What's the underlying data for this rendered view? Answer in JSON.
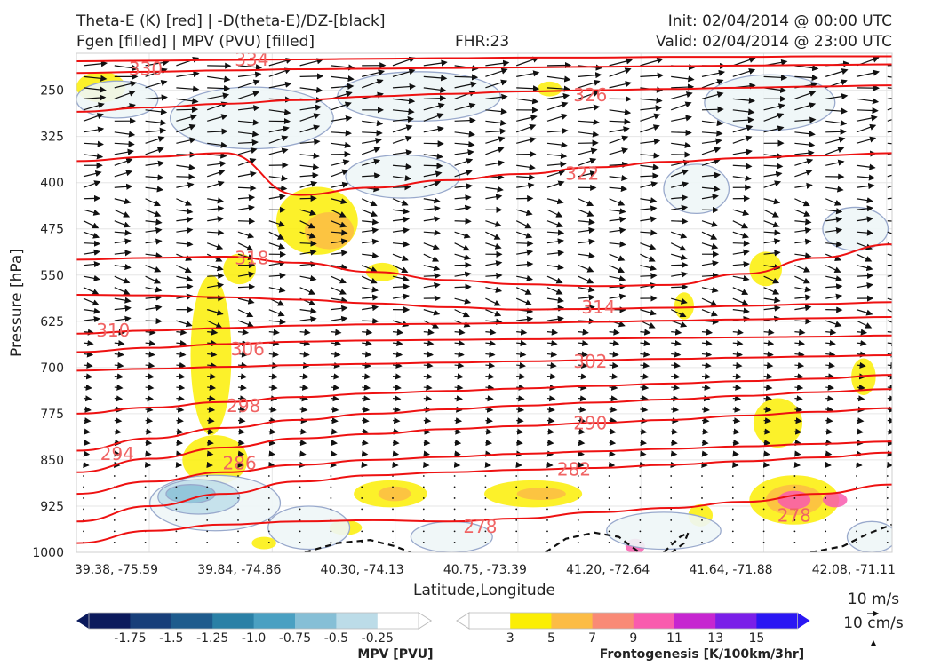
{
  "header": {
    "title_left_1": "Theta-E (K) [red] | -D(theta-E)/DZ-[black]",
    "title_left_2": "Fgen [filled] | MPV (PVU) [filled]",
    "title_center": "FHR:23",
    "title_right_1": "Init: 02/04/2014 @ 00:00 UTC",
    "title_right_2": "Valid: 02/04/2014 @ 23:00 UTC"
  },
  "chart_data": {
    "type": "contour-cross-section",
    "xlabel": "Latitude,Longitude",
    "ylabel": "Pressure [hPa]",
    "x_ticks": [
      "39.38, -75.59",
      "39.84, -74.86",
      "40.30, -74.13",
      "40.75, -73.39",
      "41.20, -72.64",
      "41.64, -71.88",
      "42.08, -71.11"
    ],
    "y_ticks": [
      250,
      325,
      400,
      475,
      550,
      625,
      700,
      775,
      850,
      925,
      1000
    ],
    "ylim": [
      1000,
      190
    ],
    "theta_e_contours": [
      {
        "level": 278,
        "pressure": [
          985,
          965,
          955,
          950,
          948,
          950,
          945,
          935,
          928,
          918,
          905,
          890
        ]
      },
      {
        "level": 282,
        "pressure": [
          950,
          925,
          905,
          885,
          875,
          870,
          866,
          863,
          858,
          852,
          846,
          838
        ]
      },
      {
        "level": 286,
        "pressure": [
          905,
          885,
          870,
          858,
          850,
          845,
          840,
          836,
          832,
          828,
          824,
          820
        ]
      },
      {
        "level": 290,
        "pressure": [
          870,
          848,
          830,
          815,
          808,
          800,
          795,
          790,
          785,
          778,
          772,
          766
        ]
      },
      {
        "level": 294,
        "pressure": [
          835,
          815,
          798,
          785,
          775,
          768,
          762,
          757,
          752,
          746,
          740,
          735
        ]
      },
      {
        "level": 298,
        "pressure": [
          775,
          765,
          756,
          748,
          742,
          738,
          734,
          730,
          726,
          722,
          718,
          712
        ]
      },
      {
        "level": 302,
        "pressure": [
          705,
          702,
          699,
          696,
          694,
          692,
          690,
          688,
          686,
          684,
          682,
          680
        ]
      },
      {
        "level": 306,
        "pressure": [
          675,
          668,
          662,
          658,
          656,
          655,
          654,
          653,
          652,
          651,
          650,
          648
        ]
      },
      {
        "level": 310,
        "pressure": [
          645,
          640,
          636,
          632,
          630,
          629,
          628,
          626,
          624,
          622,
          620,
          618
        ]
      },
      {
        "level": 314,
        "pressure": [
          582,
          583,
          586,
          590,
          596,
          602,
          606,
          605,
          603,
          600,
          597,
          594
        ]
      },
      {
        "level": 318,
        "pressure": [
          525,
          522,
          520,
          530,
          545,
          558,
          565,
          568,
          566,
          548,
          522,
          500
        ]
      },
      {
        "level": 322,
        "pressure": [
          365,
          358,
          352,
          420,
          408,
          396,
          386,
          375,
          366,
          360,
          356,
          352
        ]
      },
      {
        "level": 326,
        "pressure": [
          285,
          278,
          272,
          266,
          260,
          256,
          252,
          250,
          248,
          246,
          244,
          242
        ]
      },
      {
        "level": 330,
        "pressure": [
          222,
          220,
          218,
          216,
          215,
          214,
          213,
          212,
          211,
          210,
          209,
          208
        ]
      },
      {
        "level": 334,
        "pressure": [
          203,
          202,
          201,
          200,
          199,
          198,
          197,
          197,
          196,
          196,
          195,
          195
        ]
      }
    ],
    "contour_labels": [
      {
        "text": "330",
        "x": 0.085,
        "p": 215
      },
      {
        "text": "334",
        "x": 0.215,
        "p": 200
      },
      {
        "text": "326",
        "x": 0.63,
        "p": 258
      },
      {
        "text": "322",
        "x": 0.62,
        "p": 385
      },
      {
        "text": "318",
        "x": 0.215,
        "p": 522
      },
      {
        "text": "314",
        "x": 0.64,
        "p": 602
      },
      {
        "text": "310",
        "x": 0.045,
        "p": 640
      },
      {
        "text": "306",
        "x": 0.21,
        "p": 670
      },
      {
        "text": "302",
        "x": 0.63,
        "p": 690
      },
      {
        "text": "298",
        "x": 0.205,
        "p": 762
      },
      {
        "text": "290",
        "x": 0.63,
        "p": 790
      },
      {
        "text": "294",
        "x": 0.05,
        "p": 840
      },
      {
        "text": "286",
        "x": 0.2,
        "p": 855
      },
      {
        "text": "282",
        "x": 0.61,
        "p": 865
      },
      {
        "text": "278",
        "x": 0.495,
        "p": 958
      },
      {
        "text": "278",
        "x": 0.88,
        "p": 940
      }
    ],
    "stability_contours_black_dashed": [
      {
        "x": [
          0.28,
          0.32,
          0.36,
          0.39,
          0.41
        ],
        "p": [
          1000,
          985,
          980,
          990,
          1000
        ]
      },
      {
        "x": [
          0.575,
          0.6,
          0.635,
          0.665,
          0.69
        ],
        "p": [
          1000,
          978,
          968,
          975,
          1000
        ]
      },
      {
        "x": [
          0.72,
          0.74,
          0.75,
          0.745,
          0.73
        ],
        "p": [
          1000,
          975,
          968,
          985,
          1000
        ]
      },
      {
        "x": [
          0.9,
          0.94,
          0.97,
          1.0
        ],
        "p": [
          1000,
          990,
          970,
          955
        ]
      }
    ],
    "fgen_levels": [
      3,
      5,
      7,
      9,
      11,
      13,
      15
    ],
    "fgen_colors": [
      "#ffffff",
      "#fbee05",
      "#fcbc45",
      "#f98a76",
      "#f95bae",
      "#c626d0",
      "#7a1fe8",
      "#2a17f3"
    ],
    "fgen_blobs": [
      {
        "x": 0.03,
        "p": 245,
        "rx": 0.03,
        "rp": 25,
        "level": 3
      },
      {
        "x": 0.58,
        "p": 248,
        "rx": 0.015,
        "rp": 12,
        "level": 3
      },
      {
        "x": 0.295,
        "p": 462,
        "rx": 0.05,
        "rp": 55,
        "level": 3
      },
      {
        "x": 0.31,
        "p": 478,
        "rx": 0.03,
        "rp": 30,
        "level": 5
      },
      {
        "x": 0.2,
        "p": 540,
        "rx": 0.02,
        "rp": 25,
        "level": 3
      },
      {
        "x": 0.375,
        "p": 545,
        "rx": 0.02,
        "rp": 15,
        "level": 3
      },
      {
        "x": 0.845,
        "p": 540,
        "rx": 0.02,
        "rp": 28,
        "level": 3
      },
      {
        "x": 0.165,
        "p": 680,
        "rx": 0.025,
        "rp": 130,
        "level": 3
      },
      {
        "x": 0.745,
        "p": 600,
        "rx": 0.012,
        "rp": 22,
        "level": 3
      },
      {
        "x": 0.965,
        "p": 715,
        "rx": 0.015,
        "rp": 30,
        "level": 3
      },
      {
        "x": 0.86,
        "p": 790,
        "rx": 0.03,
        "rp": 40,
        "level": 3
      },
      {
        "x": 0.17,
        "p": 850,
        "rx": 0.04,
        "rp": 40,
        "level": 3
      },
      {
        "x": 0.385,
        "p": 905,
        "rx": 0.045,
        "rp": 22,
        "level": 3
      },
      {
        "x": 0.39,
        "p": 905,
        "rx": 0.02,
        "rp": 12,
        "level": 5
      },
      {
        "x": 0.56,
        "p": 905,
        "rx": 0.06,
        "rp": 22,
        "level": 3
      },
      {
        "x": 0.57,
        "p": 905,
        "rx": 0.03,
        "rp": 10,
        "level": 5
      },
      {
        "x": 0.88,
        "p": 915,
        "rx": 0.055,
        "rp": 40,
        "level": 3
      },
      {
        "x": 0.88,
        "p": 915,
        "rx": 0.035,
        "rp": 25,
        "level": 5
      },
      {
        "x": 0.88,
        "p": 915,
        "rx": 0.02,
        "rp": 15,
        "level": 9
      },
      {
        "x": 0.93,
        "p": 915,
        "rx": 0.015,
        "rp": 12,
        "level": 9
      },
      {
        "x": 0.685,
        "p": 990,
        "rx": 0.012,
        "rp": 12,
        "level": 9
      },
      {
        "x": 0.33,
        "p": 960,
        "rx": 0.02,
        "rp": 12,
        "level": 3
      },
      {
        "x": 0.23,
        "p": 985,
        "rx": 0.015,
        "rp": 10,
        "level": 3
      },
      {
        "x": 0.765,
        "p": 940,
        "rx": 0.015,
        "rp": 18,
        "level": 3
      }
    ],
    "mpv_levels": [
      -1.75,
      -1.5,
      -1.25,
      -1.0,
      -0.75,
      -0.5,
      -0.25
    ],
    "mpv_colors": [
      "#0b1a5c",
      "#183f7a",
      "#1e5b8d",
      "#2a80a6",
      "#4aa0c2",
      "#86bfd6",
      "#bcdce8",
      "#ffffff"
    ],
    "mpv_blobs": [
      {
        "x": 0.05,
        "p": 265,
        "rx": 0.05,
        "rp": 30,
        "level": -0.25
      },
      {
        "x": 0.215,
        "p": 295,
        "rx": 0.1,
        "rp": 50,
        "level": -0.25
      },
      {
        "x": 0.42,
        "p": 260,
        "rx": 0.1,
        "rp": 40,
        "level": -0.25
      },
      {
        "x": 0.85,
        "p": 270,
        "rx": 0.08,
        "rp": 45,
        "level": -0.25
      },
      {
        "x": 0.4,
        "p": 390,
        "rx": 0.07,
        "rp": 35,
        "level": -0.25
      },
      {
        "x": 0.76,
        "p": 410,
        "rx": 0.04,
        "rp": 40,
        "level": -0.25
      },
      {
        "x": 0.955,
        "p": 475,
        "rx": 0.04,
        "rp": 35,
        "level": -0.25
      },
      {
        "x": 0.17,
        "p": 920,
        "rx": 0.08,
        "rp": 45,
        "level": -0.25
      },
      {
        "x": 0.15,
        "p": 910,
        "rx": 0.05,
        "rp": 28,
        "level": -0.5
      },
      {
        "x": 0.14,
        "p": 905,
        "rx": 0.03,
        "rp": 15,
        "level": -0.75
      },
      {
        "x": 0.285,
        "p": 960,
        "rx": 0.05,
        "rp": 35,
        "level": -0.25
      },
      {
        "x": 0.46,
        "p": 975,
        "rx": 0.05,
        "rp": 25,
        "level": -0.25
      },
      {
        "x": 0.72,
        "p": 965,
        "rx": 0.07,
        "rp": 30,
        "level": -0.25
      },
      {
        "x": 0.975,
        "p": 975,
        "rx": 0.03,
        "rp": 25,
        "level": -0.25
      }
    ],
    "wind_quiver_key": {
      "u_label": "10 m/s",
      "w_label": "10 cm/s"
    },
    "grid": true
  },
  "colorbars": {
    "mpv_label": "MPV [PVU]",
    "mpv_ticks": [
      "-1.75",
      "-1.5",
      "-1.25",
      "-1.0",
      "-0.75",
      "-0.5",
      "-0.25"
    ],
    "fgen_label": "Frontogenesis [K/100km/3hr]",
    "fgen_ticks": [
      "3",
      "5",
      "7",
      "9",
      "11",
      "13",
      "15"
    ]
  }
}
